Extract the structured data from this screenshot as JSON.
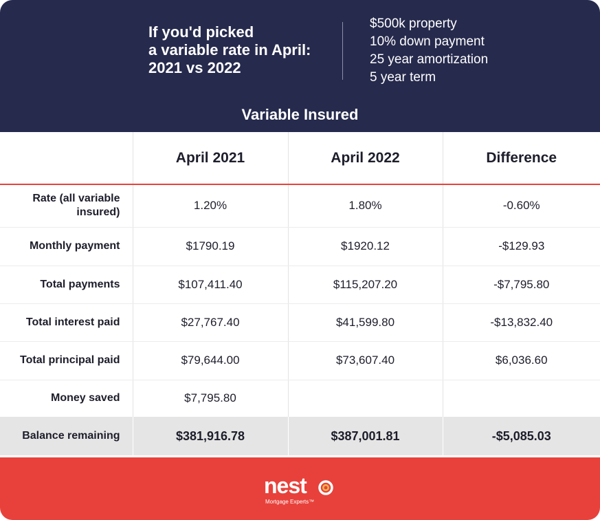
{
  "header": {
    "headline": [
      "If you'd picked",
      "a variable rate in April:",
      "2021 vs 2022"
    ],
    "specs": [
      "$500k property",
      "10% down payment",
      "25 year amortization",
      "5 year term"
    ],
    "subtitle": "Variable Insured"
  },
  "table": {
    "columns": [
      "April 2021",
      "April 2022",
      "Difference"
    ],
    "rows": [
      {
        "label": "Rate (all variable insured)",
        "values": [
          "1.20%",
          "1.80%",
          "-0.60%"
        ]
      },
      {
        "label": "Monthly payment",
        "values": [
          "$1790.19",
          "$1920.12",
          "-$129.93"
        ]
      },
      {
        "label": "Total payments",
        "values": [
          "$107,411.40",
          "$115,207.20",
          "-$7,795.80"
        ]
      },
      {
        "label": "Total interest paid",
        "values": [
          "$27,767.40",
          "$41,599.80",
          "-$13,832.40"
        ]
      },
      {
        "label": "Total principal paid",
        "values": [
          "$79,644.00",
          "$73,607.40",
          "$6,036.60"
        ]
      },
      {
        "label": "Money saved",
        "values": [
          "$7,795.80",
          "",
          ""
        ]
      }
    ],
    "total": {
      "label": "Balance remaining",
      "values": [
        "$381,916.78",
        "$387,001.81",
        "-$5,085.03"
      ]
    }
  },
  "footer": {
    "logo_word": "nest",
    "logo_tagline": "Mortgage Experts™"
  },
  "colors": {
    "navy": "#262a4d",
    "accent_red": "#e8413b",
    "total_row_bg": "#e5e5e5"
  }
}
